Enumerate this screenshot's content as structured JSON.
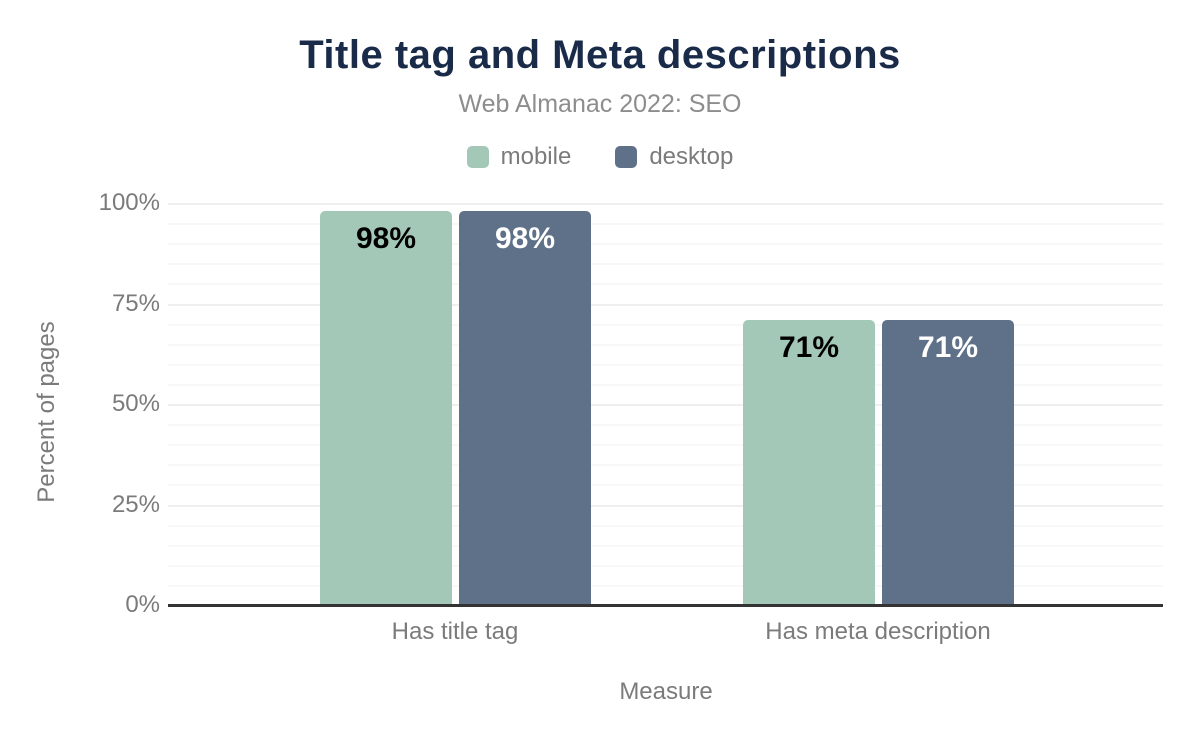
{
  "chart_data": {
    "type": "bar",
    "title": "Title tag and Meta descriptions",
    "subtitle": "Web Almanac 2022: SEO",
    "xlabel": "Measure",
    "ylabel": "Percent of pages",
    "categories": [
      "Has title tag",
      "Has meta description"
    ],
    "series": [
      {
        "name": "mobile",
        "color": "#a4c8b7",
        "label_color": "#000000",
        "values": [
          98,
          71
        ]
      },
      {
        "name": "desktop",
        "color": "#5f7089",
        "label_color": "#ffffff",
        "values": [
          98,
          71
        ]
      }
    ],
    "value_suffix": "%",
    "y_ticks": [
      "0%",
      "25%",
      "50%",
      "75%",
      "100%"
    ],
    "y_tick_values": [
      0,
      25,
      50,
      75,
      100
    ],
    "ylim": [
      0,
      100
    ],
    "minor_grid_step": 5,
    "major_grid_step": 25,
    "grid": true,
    "legend_position": "top"
  },
  "colors": {
    "title": "#1a2b49",
    "subtitle": "#8d8d8d",
    "axis_text": "#7b7b7b",
    "axis_line": "#333333"
  }
}
